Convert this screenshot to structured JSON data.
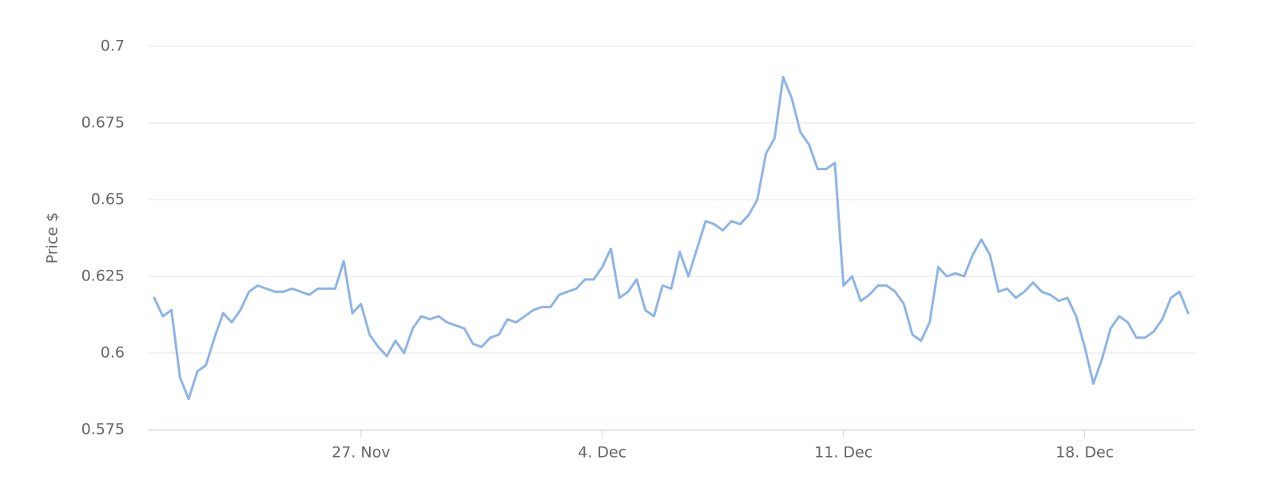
{
  "chart_data": {
    "type": "line",
    "y_label": "Price $",
    "categories": [
      null,
      null,
      null,
      null,
      null,
      null,
      null,
      null,
      null,
      null,
      null,
      null,
      null,
      null,
      null,
      null,
      null,
      null,
      null,
      null,
      null,
      null,
      null,
      null,
      "27. Nov",
      null,
      null,
      null,
      null,
      null,
      null,
      null,
      null,
      null,
      null,
      null,
      null,
      null,
      null,
      null,
      null,
      null,
      null,
      null,
      null,
      null,
      null,
      null,
      null,
      null,
      null,
      null,
      "4. Dec",
      null,
      null,
      null,
      null,
      null,
      null,
      null,
      null,
      null,
      null,
      null,
      null,
      null,
      null,
      null,
      null,
      null,
      null,
      null,
      null,
      null,
      null,
      null,
      null,
      null,
      null,
      null,
      "11. Dec",
      null,
      null,
      null,
      null,
      null,
      null,
      null,
      null,
      null,
      null,
      null,
      null,
      null,
      null,
      null,
      null,
      null,
      null,
      null,
      null,
      null,
      null,
      null,
      null,
      null,
      null,
      null,
      "18. Dec",
      null,
      null,
      null,
      null,
      null,
      null,
      null,
      null,
      null,
      null,
      null,
      null
    ],
    "values": [
      0.618,
      0.612,
      0.614,
      0.592,
      0.585,
      0.594,
      0.596,
      0.605,
      0.613,
      0.61,
      0.614,
      0.62,
      0.622,
      0.621,
      0.62,
      0.62,
      0.621,
      0.62,
      0.619,
      0.621,
      0.621,
      0.621,
      0.63,
      0.613,
      0.616,
      0.606,
      0.602,
      0.599,
      0.604,
      0.6,
      0.608,
      0.612,
      0.611,
      0.612,
      0.61,
      0.609,
      0.608,
      0.603,
      0.602,
      0.605,
      0.606,
      0.611,
      0.61,
      0.612,
      0.614,
      0.615,
      0.615,
      0.619,
      0.62,
      0.621,
      0.624,
      0.624,
      0.628,
      0.634,
      0.618,
      0.62,
      0.624,
      0.614,
      0.612,
      0.622,
      0.621,
      0.633,
      0.625,
      0.634,
      0.643,
      0.642,
      0.64,
      0.643,
      0.642,
      0.645,
      0.65,
      0.665,
      0.67,
      0.69,
      0.683,
      0.672,
      0.668,
      0.66,
      0.66,
      0.662,
      0.622,
      0.625,
      0.617,
      0.619,
      0.622,
      0.622,
      0.62,
      0.616,
      0.606,
      0.604,
      0.61,
      0.628,
      0.625,
      0.626,
      0.625,
      0.632,
      0.637,
      0.632,
      0.62,
      0.621,
      0.618,
      0.62,
      0.623,
      0.62,
      0.619,
      0.617,
      0.618,
      0.612,
      0.602,
      0.59,
      0.598,
      0.608,
      0.612,
      0.61,
      0.605,
      0.605,
      0.607,
      0.611,
      0.618,
      0.62,
      0.613
    ],
    "color": "#8db4e8",
    "ylim": [
      0.575,
      0.7
    ],
    "yticks": [
      0.575,
      0.6,
      0.625,
      0.65,
      0.675,
      0.7
    ],
    "grid": true
  }
}
